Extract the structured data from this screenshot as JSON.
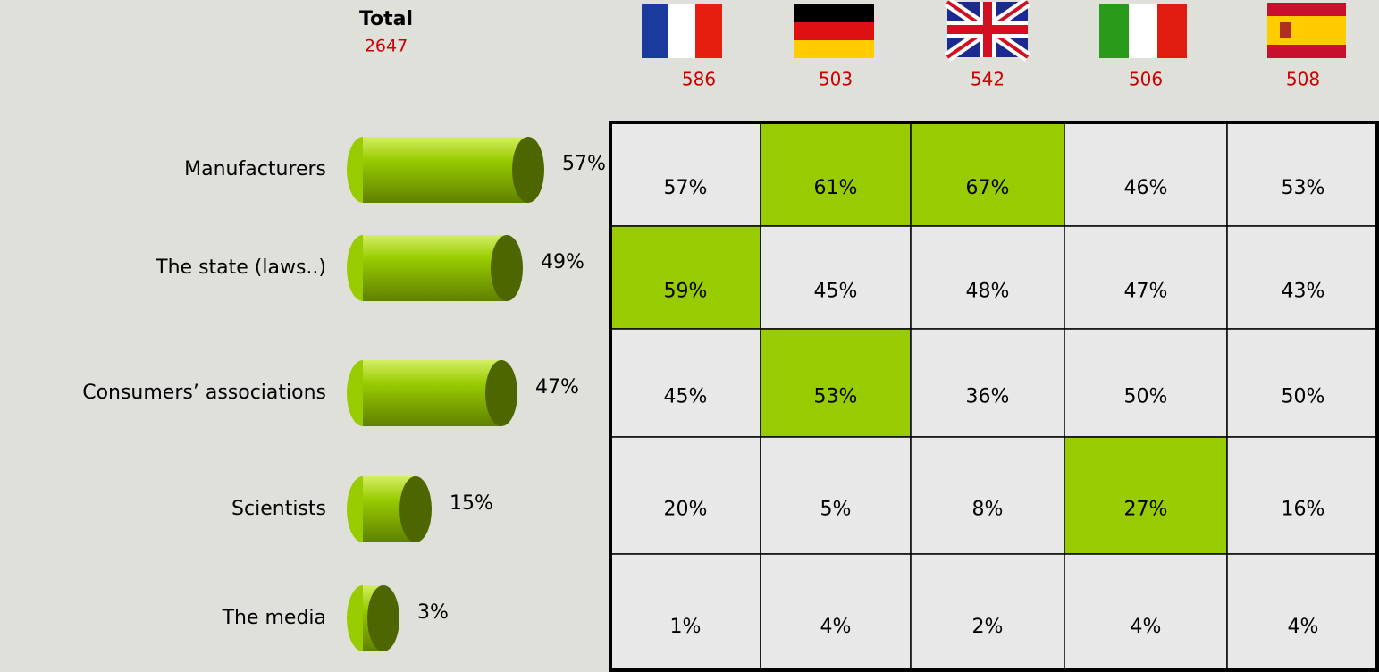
{
  "chart_data": {
    "type": "bar",
    "title": "Total",
    "subtitle": "2647",
    "categories": [
      "Manufacturers",
      "The state (laws..)",
      "Consumers’ associations",
      "Scientists",
      "The media"
    ],
    "values": [
      57,
      49,
      47,
      15,
      3
    ],
    "value_labels": [
      "57%",
      "49%",
      "47%",
      "15%",
      "3%"
    ],
    "color": "#99cc00",
    "end_color": "#4d6600"
  },
  "table": {
    "column_counts": [
      "586",
      "503",
      "542",
      "506",
      "508"
    ],
    "rows": [
      [
        "57%",
        "61%",
        "67%",
        "46%",
        "53%"
      ],
      [
        "59%",
        "45%",
        "48%",
        "47%",
        "43%"
      ],
      [
        "45%",
        "53%",
        "36%",
        "50%",
        "50%"
      ],
      [
        "20%",
        "5%",
        "8%",
        "27%",
        "16%"
      ],
      [
        "1%",
        "4%",
        "2%",
        "4%",
        "4%"
      ]
    ],
    "highlighted": [
      [
        false,
        true,
        true,
        false,
        false
      ],
      [
        true,
        false,
        false,
        false,
        false
      ],
      [
        false,
        true,
        false,
        false,
        false
      ],
      [
        false,
        false,
        false,
        true,
        false
      ],
      [
        false,
        false,
        false,
        false,
        false
      ]
    ],
    "highlight_color": "#99cc00",
    "cell_color": "#e8e8e8"
  }
}
